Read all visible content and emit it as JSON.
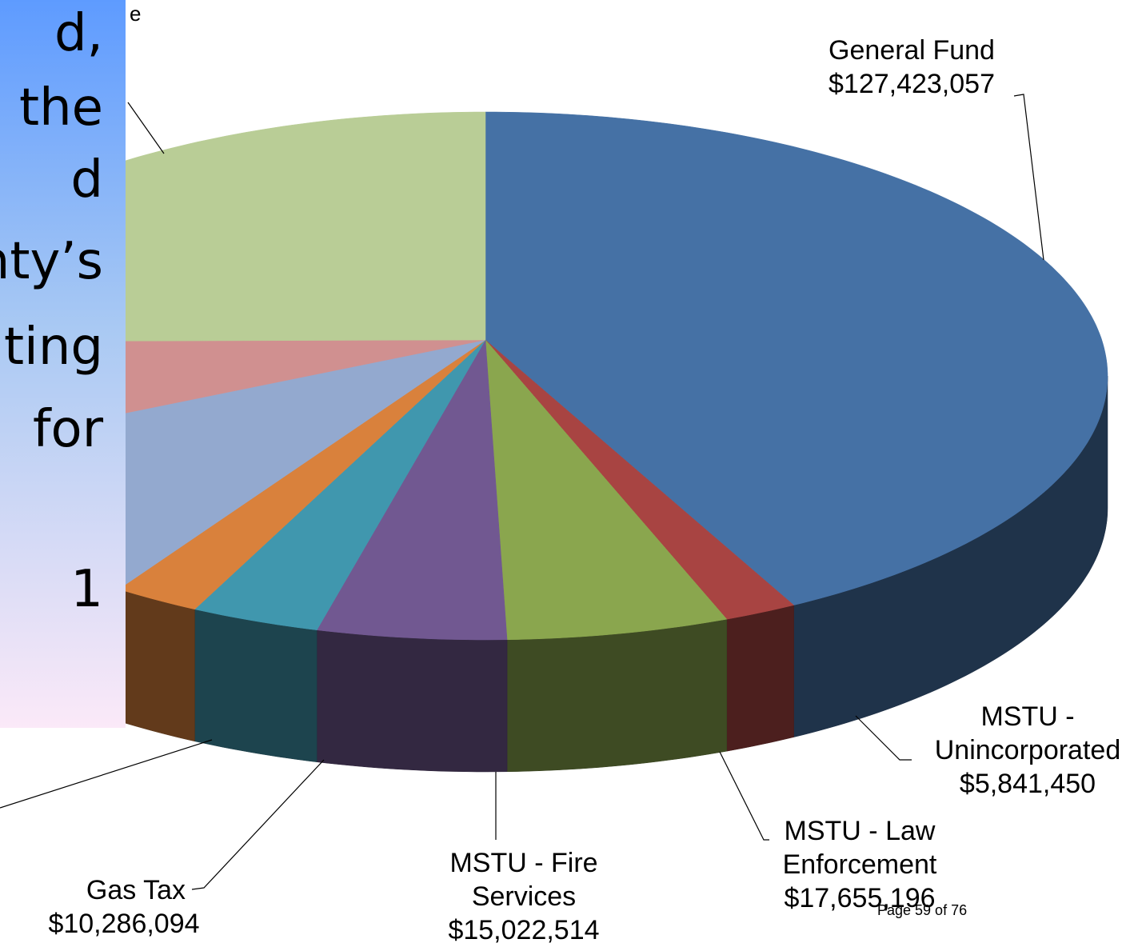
{
  "chart_data": {
    "type": "pie",
    "categories": [
      "General Fund",
      "MSTU - Unincorporated",
      "MSTU - Law Enforcement",
      "MSTU - Fire Services",
      "Gas Tax",
      null,
      null,
      null,
      null
    ],
    "values": [
      127423057,
      5841450,
      17655196,
      15022514,
      10286094,
      7000000,
      30000000,
      22000000,
      70000000
    ],
    "value_labels": [
      "$127,423,057",
      "$5,841,450",
      "$17,655,196",
      "$15,022,514",
      "$10,286,094",
      null,
      null,
      null,
      null
    ],
    "colors": [
      "#4571a5",
      "#a84442",
      "#8aa64e",
      "#715891",
      "#4097ae",
      "#d9813c",
      "#93a9cf",
      "#d09090",
      "#b9cd96"
    ],
    "annotations": [
      "e"
    ]
  },
  "textbox": {
    "lines": [
      "d,",
      "the",
      "d",
      "nty’s",
      "ting",
      "for",
      "1"
    ]
  },
  "footer": "Page 59 of 76"
}
